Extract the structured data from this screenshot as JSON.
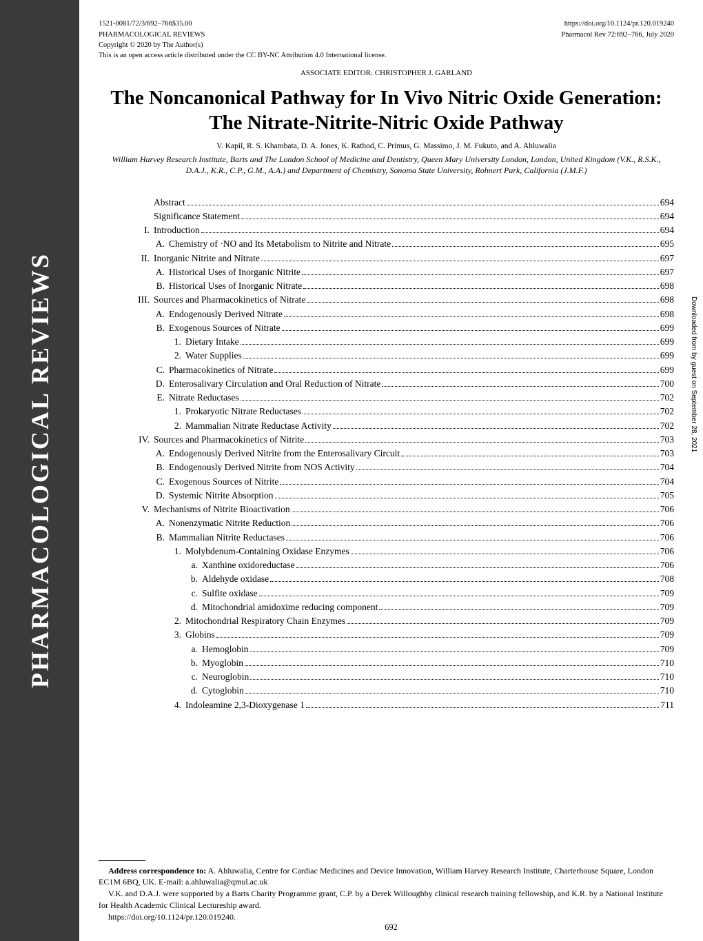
{
  "sidebar": {
    "label": "PHARMACOLOGICAL REVIEWS"
  },
  "header": {
    "left_line1": "1521-0081/72/3/692–766$35.00",
    "left_line2": "PHARMACOLOGICAL REVIEWS",
    "left_line3": "Copyright © 2020 by The Author(s)",
    "right_line1": "https://doi.org/10.1124/pr.120.019240",
    "right_line2": "Pharmacol Rev 72:692–766, July 2020",
    "license": "This is an open access article distributed under the CC BY-NC Attribution 4.0 International license."
  },
  "assoc_editor": "ASSOCIATE EDITOR: CHRISTOPHER J. GARLAND",
  "title": "The Noncanonical Pathway for In Vivo Nitric Oxide Generation: The Nitrate-Nitrite-Nitric Oxide Pathway",
  "authors": "V. Kapil, R. S. Khambata, D. A. Jones, K. Rathod, C. Primus, G. Massimo, J. M. Fukuto, and A. Ahluwalia",
  "affiliations": "William Harvey Research Institute, Barts and The London School of Medicine and Dentistry, Queen Mary University London, London, United Kingdom (V.K., R.S.K., D.A.J., K.R., C.P., G.M., A.A.) and Department of Chemistry, Sonoma State University, Rohnert Park, California (J.M.F.)",
  "toc": [
    {
      "level": "none",
      "num": "",
      "text": "Abstract",
      "page": "694"
    },
    {
      "level": "none",
      "num": "",
      "text": "Significance Statement",
      "page": "694"
    },
    {
      "level": "roman",
      "num": "I.",
      "text": "Introduction",
      "page": "694"
    },
    {
      "level": "alpha",
      "num": "A.",
      "text": "Chemistry of ·NO and Its Metabolism to Nitrite and Nitrate",
      "page": "695"
    },
    {
      "level": "roman",
      "num": "II.",
      "text": "Inorganic Nitrite and Nitrate",
      "page": "697"
    },
    {
      "level": "alpha",
      "num": "A.",
      "text": "Historical Uses of Inorganic Nitrite",
      "page": "697"
    },
    {
      "level": "alpha",
      "num": "B.",
      "text": "Historical Uses of Inorganic Nitrate",
      "page": "698"
    },
    {
      "level": "roman",
      "num": "III.",
      "text": "Sources and Pharmacokinetics of Nitrate",
      "page": "698"
    },
    {
      "level": "alpha",
      "num": "A.",
      "text": "Endogenously Derived Nitrate",
      "page": "698"
    },
    {
      "level": "alpha",
      "num": "B.",
      "text": "Exogenous Sources of Nitrate",
      "page": "699"
    },
    {
      "level": "arabic",
      "num": "1.",
      "text": "Dietary Intake",
      "page": "699"
    },
    {
      "level": "arabic",
      "num": "2.",
      "text": "Water Supplies",
      "page": "699"
    },
    {
      "level": "alpha",
      "num": "C.",
      "text": "Pharmacokinetics of Nitrate",
      "page": "699"
    },
    {
      "level": "alpha",
      "num": "D.",
      "text": "Enterosalivary Circulation and Oral Reduction of Nitrate",
      "page": "700"
    },
    {
      "level": "alpha",
      "num": "E.",
      "text": "Nitrate Reductases",
      "page": "702"
    },
    {
      "level": "arabic",
      "num": "1.",
      "text": "Prokaryotic Nitrate Reductases",
      "page": "702"
    },
    {
      "level": "arabic",
      "num": "2.",
      "text": "Mammalian Nitrate Reductase Activity",
      "page": "702"
    },
    {
      "level": "roman",
      "num": "IV.",
      "text": "Sources and Pharmacokinetics of Nitrite",
      "page": "703"
    },
    {
      "level": "alpha",
      "num": "A.",
      "text": "Endogenously Derived Nitrite from the Enterosalivary Circuit",
      "page": "703"
    },
    {
      "level": "alpha",
      "num": "B.",
      "text": "Endogenously Derived Nitrite from NOS Activity",
      "page": "704"
    },
    {
      "level": "alpha",
      "num": "C.",
      "text": "Exogenous Sources of Nitrite",
      "page": "704"
    },
    {
      "level": "alpha",
      "num": "D.",
      "text": "Systemic Nitrite Absorption",
      "page": "705"
    },
    {
      "level": "roman",
      "num": "V.",
      "text": "Mechanisms of Nitrite Bioactivation",
      "page": "706"
    },
    {
      "level": "alpha",
      "num": "A.",
      "text": "Nonenzymatic Nitrite Reduction",
      "page": "706"
    },
    {
      "level": "alpha",
      "num": "B.",
      "text": "Mammalian Nitrite Reductases",
      "page": "706"
    },
    {
      "level": "arabic",
      "num": "1.",
      "text": "Molybdenum-Containing Oxidase Enzymes",
      "page": "706"
    },
    {
      "level": "lower",
      "num": "a.",
      "text": "Xanthine oxidoreductase",
      "page": "706"
    },
    {
      "level": "lower",
      "num": "b.",
      "text": "Aldehyde oxidase",
      "page": "708"
    },
    {
      "level": "lower",
      "num": "c.",
      "text": "Sulfite oxidase",
      "page": "709"
    },
    {
      "level": "lower",
      "num": "d.",
      "text": "Mitochondrial amidoxime reducing component",
      "page": "709"
    },
    {
      "level": "arabic",
      "num": "2.",
      "text": "Mitochondrial Respiratory Chain Enzymes",
      "page": "709"
    },
    {
      "level": "arabic",
      "num": "3.",
      "text": "Globins",
      "page": "709"
    },
    {
      "level": "lower",
      "num": "a.",
      "text": "Hemoglobin",
      "page": "709"
    },
    {
      "level": "lower",
      "num": "b.",
      "text": "Myoglobin",
      "page": "710"
    },
    {
      "level": "lower",
      "num": "c.",
      "text": "Neuroglobin",
      "page": "710"
    },
    {
      "level": "lower",
      "num": "d.",
      "text": "Cytoglobin",
      "page": "710"
    },
    {
      "level": "arabic",
      "num": "4.",
      "text": "Indoleamine 2,3-Dioxygenase 1",
      "page": "711"
    }
  ],
  "footer": {
    "correspondence_bold": "Address correspondence to:",
    "correspondence_text": " A. Ahluwalia, Centre for Cardiac Medicines and Device Innovation, William Harvey Research Institute, Charterhouse Square, London EC1M 6BQ, UK. E-mail: a.ahluwalia@qmul.ac.uk",
    "support": "V.K. and D.A.J. were supported by a Barts Charity Programme grant, C.P. by a Derek Willoughby clinical research training fellowship, and K.R. by a National Institute for Health Academic Clinical Lectureship award.",
    "doi": "https://doi.org/10.1124/pr.120.019240."
  },
  "page_number": "692",
  "side_note": "Downloaded from by guest on September 28, 2021"
}
